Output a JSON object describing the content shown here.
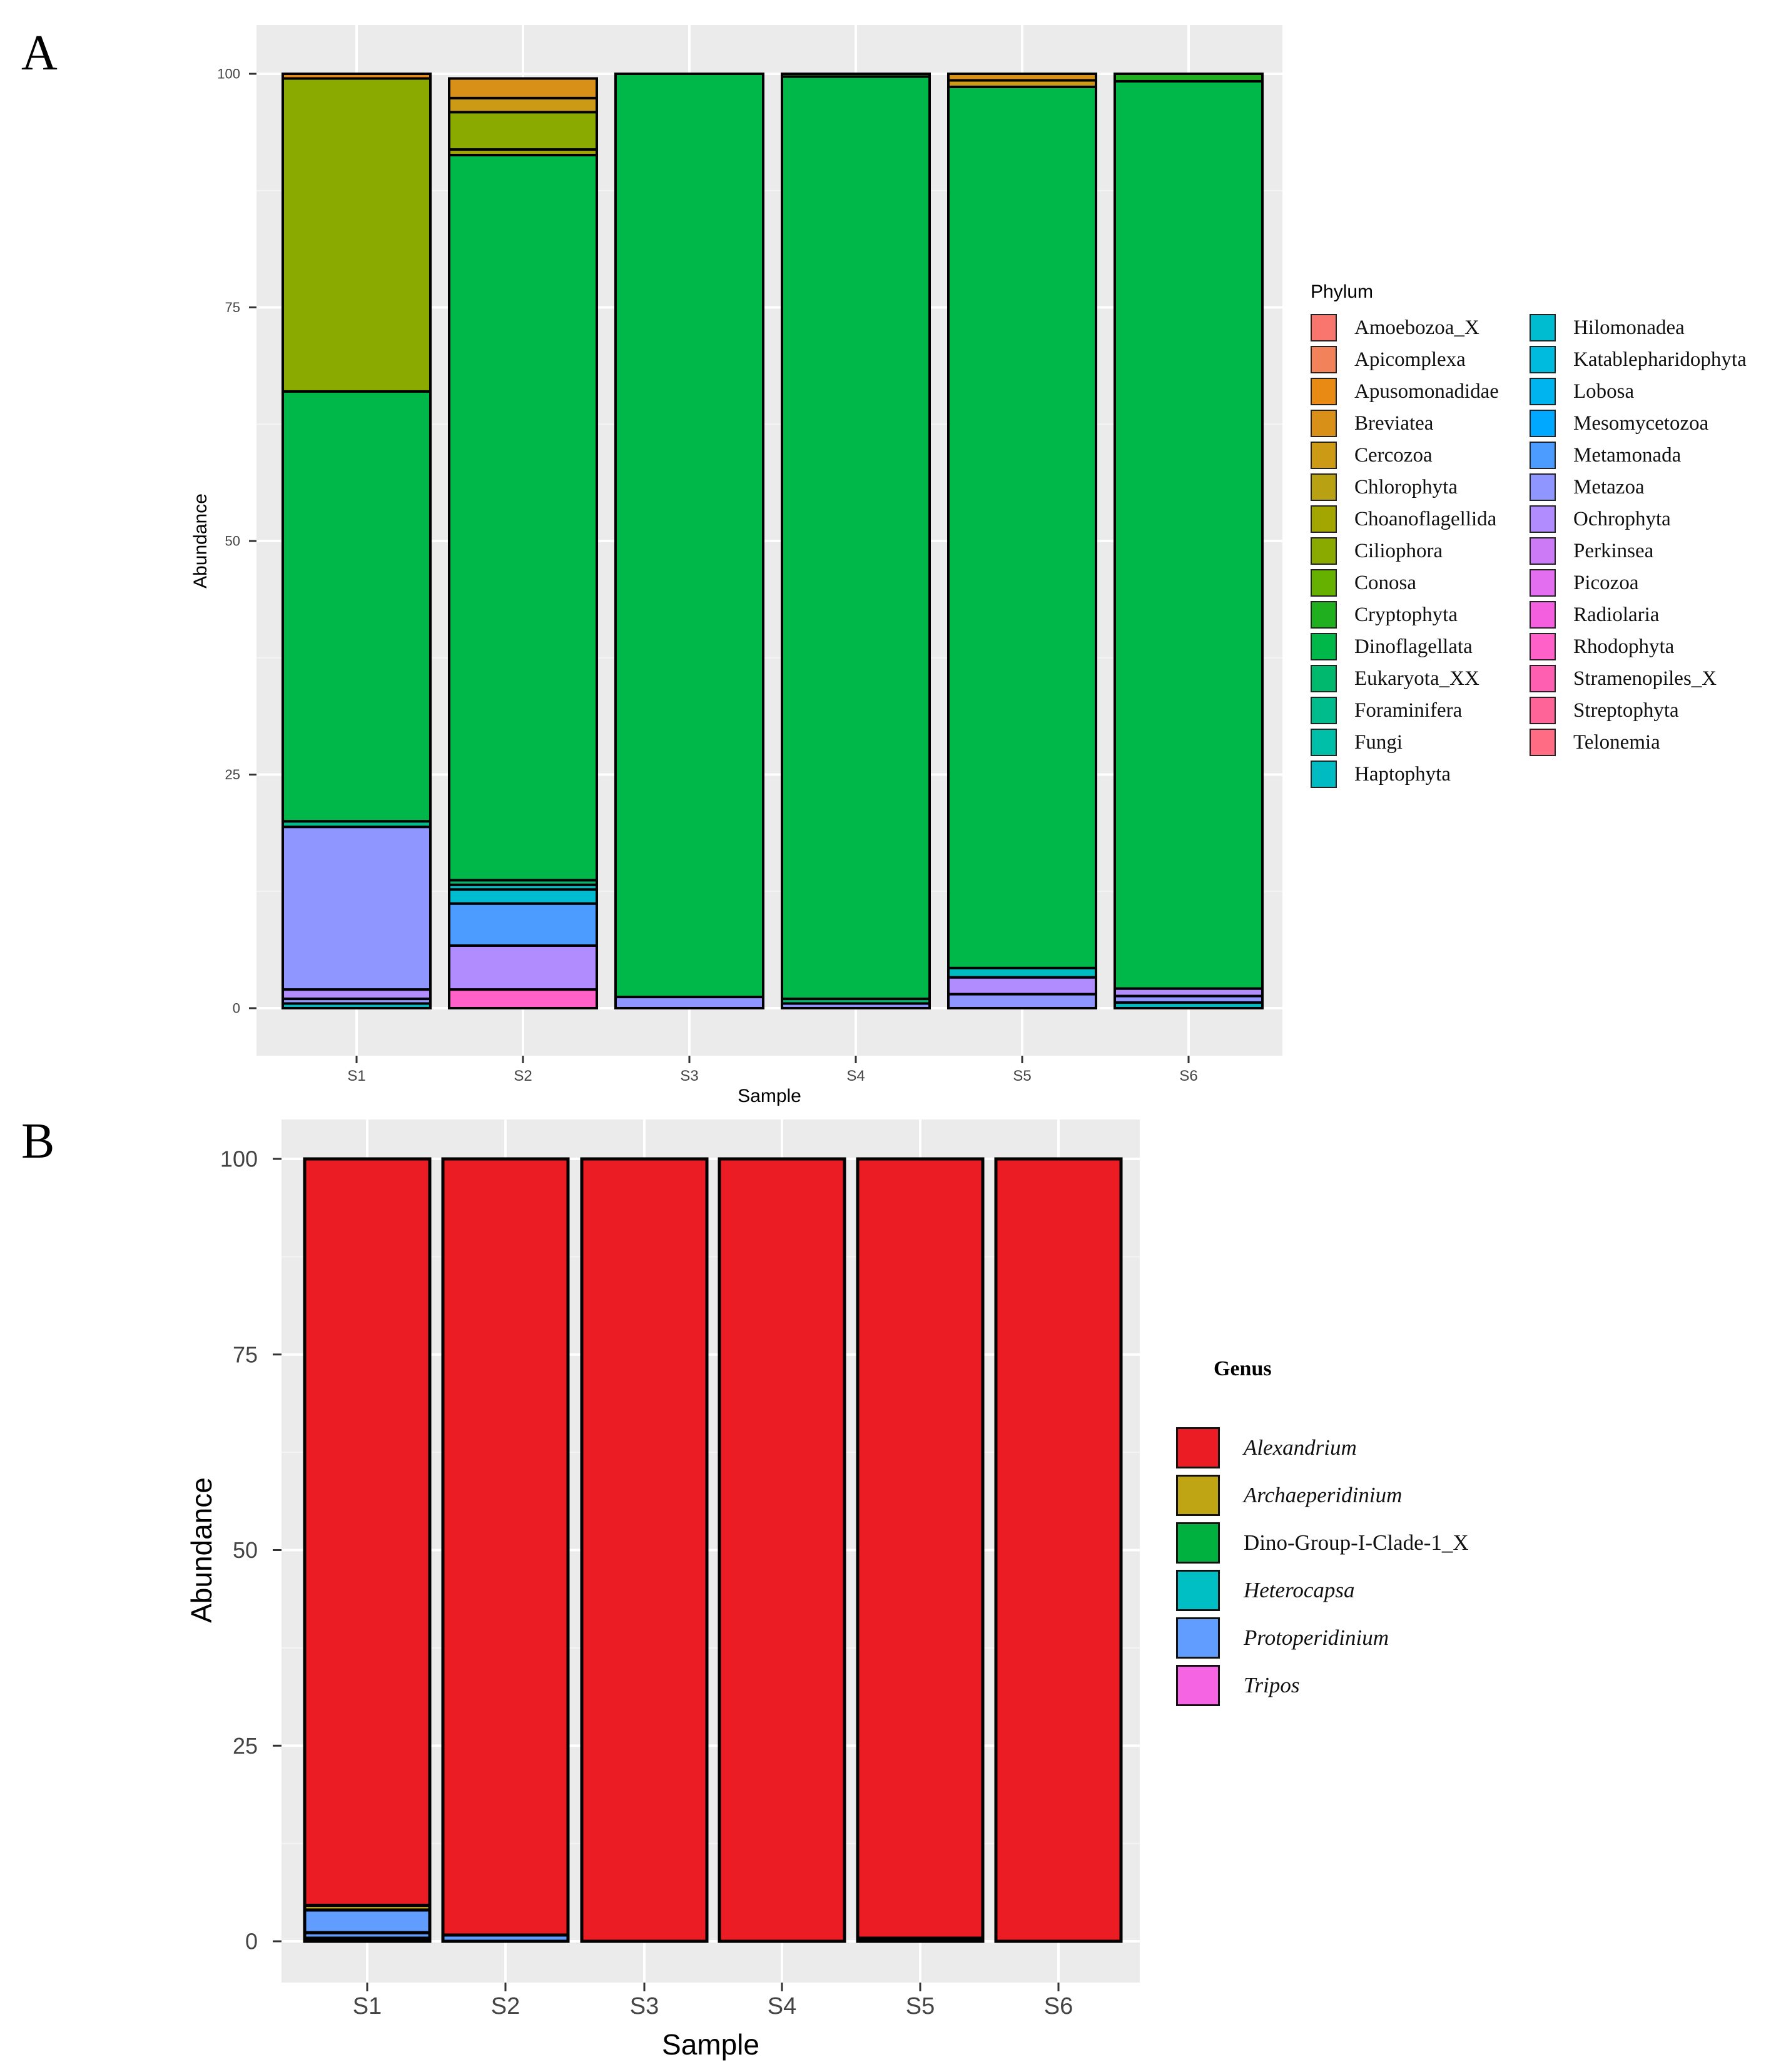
{
  "panels": {
    "a_label": "A",
    "b_label": "B"
  },
  "chart_data": [
    {
      "type": "bar",
      "stacked": true,
      "panel": "A",
      "xlabel": "Sample",
      "ylabel": "Abundance",
      "categories": [
        "S1",
        "S2",
        "S3",
        "S4",
        "S5",
        "S6"
      ],
      "ylim": [
        0,
        100
      ],
      "yticks": [
        0,
        25,
        50,
        75,
        100
      ],
      "grid": true,
      "legend_title": "Phylum",
      "legend_position": "right",
      "legend": [
        {
          "name": "Amoebozoa_X",
          "color": "#F8766D"
        },
        {
          "name": "Apicomplexa",
          "color": "#F2825A"
        },
        {
          "name": "Apusomonadidae",
          "color": "#E88A14"
        },
        {
          "name": "Breviatea",
          "color": "#D89018"
        },
        {
          "name": "Cercozoa",
          "color": "#CC9A14"
        },
        {
          "name": "Chlorophyta",
          "color": "#B8A214"
        },
        {
          "name": "Choanoflagellida",
          "color": "#A3A500"
        },
        {
          "name": "Ciliophora",
          "color": "#8AAA00"
        },
        {
          "name": "Conosa",
          "color": "#66B000"
        },
        {
          "name": "Cryptophyta",
          "color": "#1FAF1F"
        },
        {
          "name": "Dinoflagellata",
          "color": "#00B84A"
        },
        {
          "name": "Eukaryota_XX",
          "color": "#00B86E"
        },
        {
          "name": "Foraminifera",
          "color": "#00BC8C"
        },
        {
          "name": "Fungi",
          "color": "#00BFA8"
        },
        {
          "name": "Haptophyta",
          "color": "#00BCC2"
        },
        {
          "name": "Hilomonadea",
          "color": "#00BCD0"
        },
        {
          "name": "Katablepharidophyta",
          "color": "#00BBDE"
        },
        {
          "name": "Lobosa",
          "color": "#00B4EF"
        },
        {
          "name": "Mesomycetozoa",
          "color": "#00A8FF"
        },
        {
          "name": "Metamonada",
          "color": "#4C9CFF"
        },
        {
          "name": "Metazoa",
          "color": "#8F96FF"
        },
        {
          "name": "Ochrophyta",
          "color": "#B08CFF"
        },
        {
          "name": "Perkinsea",
          "color": "#CC7AF5"
        },
        {
          "name": "Picozoa",
          "color": "#E46EF0"
        },
        {
          "name": "Radiolaria",
          "color": "#F45FE0"
        },
        {
          "name": "Rhodophyta",
          "color": "#FF61C8"
        },
        {
          "name": "Stramenopiles_X",
          "color": "#FF5FB0"
        },
        {
          "name": "Streptophyta",
          "color": "#FF6498"
        },
        {
          "name": "Telonemia",
          "color": "#FF6C84"
        }
      ],
      "stacks": [
        {
          "category": "S1",
          "segments": [
            {
              "name": "Haptophyta",
              "value": 0.5
            },
            {
              "name": "Metazoa",
              "value": 0.5
            },
            {
              "name": "Ochrophyta",
              "value": 1.0
            },
            {
              "name": "Metazoa",
              "value": 17.4
            },
            {
              "name": "Foraminifera",
              "value": 0.6
            },
            {
              "name": "Dinoflagellata",
              "value": 46.0
            },
            {
              "name": "Ciliophora",
              "value": 33.5
            },
            {
              "name": "Apusomonadidae",
              "value": 0.5
            }
          ]
        },
        {
          "category": "S2",
          "segments": [
            {
              "name": "Rhodophyta",
              "value": 2.0
            },
            {
              "name": "Ochrophyta",
              "value": 4.7
            },
            {
              "name": "Metamonada",
              "value": 4.5
            },
            {
              "name": "Hilomonadea",
              "value": 1.5
            },
            {
              "name": "Haptophyta",
              "value": 0.5
            },
            {
              "name": "Eukaryota_XX",
              "value": 0.5
            },
            {
              "name": "Dinoflagellata",
              "value": 77.6
            },
            {
              "name": "Choanoflagellida",
              "value": 0.6
            },
            {
              "name": "Ciliophora",
              "value": 4.0
            },
            {
              "name": "Cercozoa",
              "value": 1.5
            },
            {
              "name": "Breviatea",
              "value": 2.1
            }
          ]
        },
        {
          "category": "S3",
          "segments": [
            {
              "name": "Metazoa",
              "value": 1.2
            },
            {
              "name": "Dinoflagellata",
              "value": 98.8
            }
          ]
        },
        {
          "category": "S4",
          "segments": [
            {
              "name": "Metazoa",
              "value": 0.5
            },
            {
              "name": "Eukaryota_XX",
              "value": 0.5
            },
            {
              "name": "Dinoflagellata",
              "value": 98.7
            },
            {
              "name": "Cryptophyta",
              "value": 0.3
            }
          ]
        },
        {
          "category": "S5",
          "segments": [
            {
              "name": "Metazoa",
              "value": 1.5
            },
            {
              "name": "Ochrophyta",
              "value": 1.8
            },
            {
              "name": "Haptophyta",
              "value": 1.0
            },
            {
              "name": "Dinoflagellata",
              "value": 94.3
            },
            {
              "name": "Cercozoa",
              "value": 0.7
            },
            {
              "name": "Breviatea",
              "value": 0.7
            }
          ]
        },
        {
          "category": "S6",
          "segments": [
            {
              "name": "Haptophyta",
              "value": 0.6
            },
            {
              "name": "Metazoa",
              "value": 0.7
            },
            {
              "name": "Ochrophyta",
              "value": 0.8
            },
            {
              "name": "Dinoflagellata",
              "value": 97.1
            },
            {
              "name": "Cryptophyta",
              "value": 0.8
            }
          ]
        }
      ]
    },
    {
      "type": "bar",
      "stacked": true,
      "panel": "B",
      "xlabel": "Sample",
      "ylabel": "Abundance",
      "categories": [
        "S1",
        "S2",
        "S3",
        "S4",
        "S5",
        "S6"
      ],
      "ylim": [
        0,
        100
      ],
      "yticks": [
        0,
        25,
        50,
        75,
        100
      ],
      "grid": true,
      "legend_title": "Genus",
      "legend_position": "right",
      "legend": [
        {
          "name": "Alexandrium",
          "color": "#EC1C24",
          "italic": true
        },
        {
          "name": "Archaeperidinium",
          "color": "#BFA414",
          "italic": true
        },
        {
          "name": "Dino-Group-I-Clade-1_X",
          "color": "#00B140",
          "italic": false
        },
        {
          "name": "Heterocapsa",
          "color": "#00BFC4",
          "italic": true
        },
        {
          "name": "Protoperidinium",
          "color": "#619CFF",
          "italic": true
        },
        {
          "name": "Tripos",
          "color": "#F564E3",
          "italic": true
        }
      ],
      "stacks": [
        {
          "category": "S1",
          "segments": [
            {
              "name": "Tripos",
              "value": 0.4
            },
            {
              "name": "Protoperidinium",
              "value": 0.7
            },
            {
              "name": "Protoperidinium",
              "value": 2.9
            },
            {
              "name": "Archaeperidinium",
              "value": 0.6
            },
            {
              "name": "Alexandrium",
              "value": 95.4
            }
          ]
        },
        {
          "category": "S2",
          "segments": [
            {
              "name": "Protoperidinium",
              "value": 0.8
            },
            {
              "name": "Alexandrium",
              "value": 99.2
            }
          ]
        },
        {
          "category": "S3",
          "segments": [
            {
              "name": "Alexandrium",
              "value": 100
            }
          ]
        },
        {
          "category": "S4",
          "segments": [
            {
              "name": "Alexandrium",
              "value": 100
            }
          ]
        },
        {
          "category": "S5",
          "segments": [
            {
              "name": "Protoperidinium",
              "value": 0.4
            },
            {
              "name": "Alexandrium",
              "value": 99.6
            }
          ]
        },
        {
          "category": "S6",
          "segments": [
            {
              "name": "Alexandrium",
              "value": 100
            }
          ]
        }
      ]
    }
  ]
}
